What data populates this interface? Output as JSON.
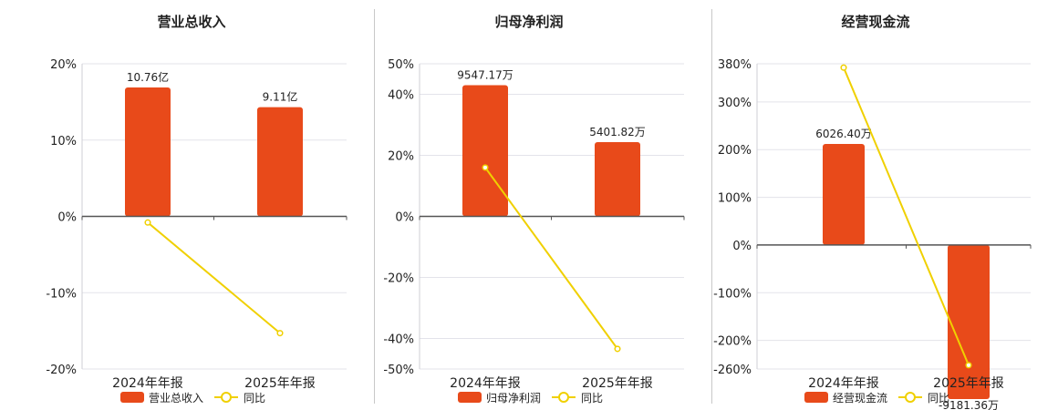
{
  "colors": {
    "bar": "#E84A1A",
    "line": "#F0D000",
    "grid": "#e3e3ea",
    "axis": "#555555",
    "text": "#222222"
  },
  "chart_data": [
    {
      "type": "bar",
      "title": "营业总收入",
      "categories": [
        "2024年年报",
        "2025年年报"
      ],
      "series": [
        {
          "name": "营业总收入",
          "type": "bar",
          "axis": "value",
          "values": [
            10.76,
            9.11
          ],
          "labels": [
            "10.76亿",
            "9.11亿"
          ]
        },
        {
          "name": "同比",
          "type": "line",
          "axis": "percent",
          "values": [
            -0.8,
            -15.3
          ]
        }
      ],
      "ylim": [
        -20,
        20
      ],
      "yticks": [
        "20%",
        "10%",
        "0%",
        "-10%",
        "-20%"
      ],
      "ytick_values": [
        20,
        10,
        0,
        -10,
        -20
      ],
      "legend": "bottom"
    },
    {
      "type": "bar",
      "title": "归母净利润",
      "categories": [
        "2024年年报",
        "2025年年报"
      ],
      "series": [
        {
          "name": "归母净利润",
          "type": "bar",
          "axis": "value",
          "values": [
            9547.17,
            5401.82
          ],
          "labels": [
            "9547.17万",
            "5401.82万"
          ]
        },
        {
          "name": "同比",
          "type": "line",
          "axis": "percent",
          "values": [
            16.0,
            -43.4
          ]
        }
      ],
      "ylim": [
        -50,
        50
      ],
      "yticks": [
        "50%",
        "40%",
        "20%",
        "0%",
        "-20%",
        "-40%",
        "-50%"
      ],
      "ytick_values": [
        50,
        40,
        20,
        0,
        -20,
        -40,
        -50
      ],
      "legend": "bottom"
    },
    {
      "type": "bar",
      "title": "经营现金流",
      "categories": [
        "2024年年报",
        "2025年年报"
      ],
      "series": [
        {
          "name": "经营现金流",
          "type": "bar",
          "axis": "value",
          "values": [
            6026.4,
            -9181.36
          ],
          "labels": [
            "6026.40万",
            "-9181.36万"
          ]
        },
        {
          "name": "同比",
          "type": "line",
          "axis": "percent",
          "values": [
            372,
            -252
          ]
        }
      ],
      "ylim": [
        -260,
        380
      ],
      "yticks": [
        "380%",
        "300%",
        "200%",
        "100%",
        "0%",
        "-100%",
        "-200%",
        "-260%"
      ],
      "ytick_values": [
        380,
        300,
        200,
        100,
        0,
        -100,
        -200,
        -260
      ],
      "legend": "bottom"
    }
  ]
}
